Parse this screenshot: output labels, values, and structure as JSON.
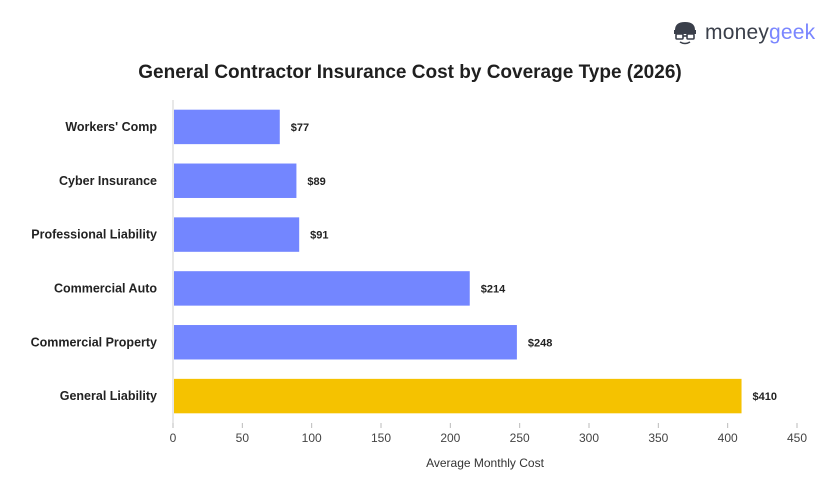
{
  "brand": {
    "name_part1": "money",
    "name_part2": "geek",
    "logo_icon": "moneygeek-face-icon",
    "color_dark": "#3a3f4a",
    "color_accent": "#7a86ff"
  },
  "chart_data": {
    "type": "bar",
    "orientation": "horizontal",
    "title": "General Contractor Insurance Cost by Coverage Type (2026)",
    "xlabel": "Average Monthly Cost",
    "ylabel": "",
    "categories": [
      "Workers' Comp",
      "Cyber Insurance",
      "Professional Liability",
      "Commercial Auto",
      "Commercial Property",
      "General Liability"
    ],
    "values": [
      77,
      89,
      91,
      214,
      248,
      410
    ],
    "data_labels": [
      "$77",
      "$89",
      "$91",
      "$214",
      "$248",
      "$410"
    ],
    "xlim": [
      0,
      450
    ],
    "xticks": [
      0,
      50,
      100,
      150,
      200,
      250,
      300,
      350,
      400,
      450
    ],
    "grid": false,
    "colors": {
      "default": "#7386ff",
      "highlight": "#f5c200",
      "highlight_category": "General Liability"
    }
  }
}
